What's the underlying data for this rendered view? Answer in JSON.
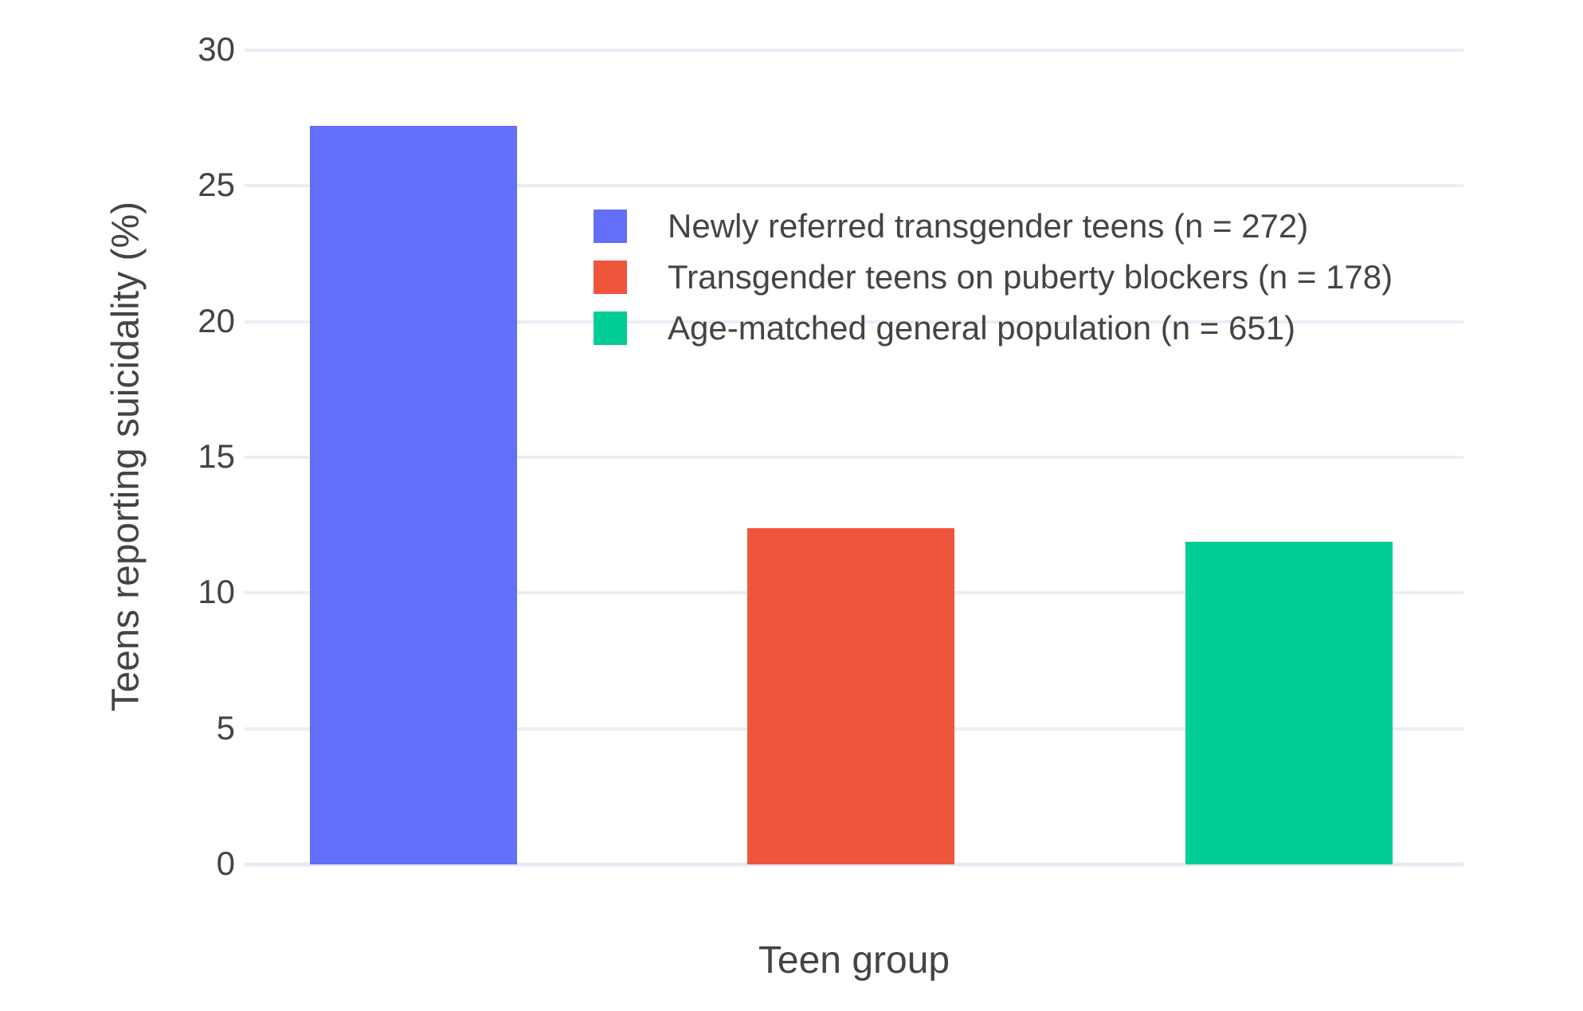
{
  "chart_data": {
    "type": "bar",
    "title": "",
    "xlabel": "Teen group",
    "ylabel": "Teens reporting suicidality (%)",
    "ylim": [
      0,
      30
    ],
    "yticks": [
      0,
      5,
      10,
      15,
      20,
      25,
      30
    ],
    "grid": true,
    "legend_position": "inside-top-center",
    "categories": [
      "Newly referred transgender teens",
      "Transgender teens on puberty blockers",
      "Age-matched general population"
    ],
    "series": [
      {
        "name": "Newly referred transgender teens (n = 272)",
        "value": 27.2,
        "color": "#636EFA"
      },
      {
        "name": "Transgender teens on puberty blockers (n = 178)",
        "value": 12.4,
        "color": "#EF553B"
      },
      {
        "name": "Age-matched general population (n = 651)",
        "value": 11.9,
        "color": "#00CC96"
      }
    ],
    "colors": {
      "background": "#FFFFFF",
      "gridline": "#E9EEF6",
      "zeroline": "#E4EAF3",
      "text": "#444444"
    }
  }
}
